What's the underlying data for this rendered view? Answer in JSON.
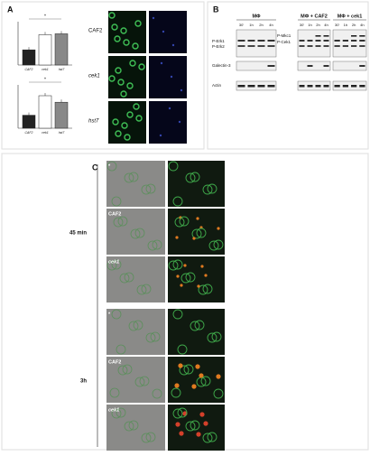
{
  "panel_a": {
    "label": "A",
    "bar_charts": [
      {
        "categories": [
          "CAF2",
          "cek1",
          "hst7"
        ],
        "values": [
          0.35,
          0.7,
          0.72
        ],
        "colors": [
          "#222222",
          "#ffffff",
          "#888888"
        ]
      },
      {
        "categories": [
          "CAF2",
          "cek1",
          "hst7"
        ],
        "values": [
          0.3,
          0.75,
          0.6
        ],
        "colors": [
          "#222222",
          "#ffffff",
          "#888888"
        ]
      }
    ],
    "significance": "*",
    "image_rows": [
      "CAF2",
      "cek1",
      "hst7"
    ]
  },
  "panel_b": {
    "label": "B",
    "groups": [
      "MΦ",
      "MΦ + CAF2",
      "MΦ + cek1"
    ],
    "times": [
      "30'",
      "1h",
      "2h",
      "4h"
    ],
    "left_labels": [
      "P-Erk1",
      "P-Erk2",
      "Galectin-3",
      "Actin"
    ],
    "mid_labels": [
      "P-Mkc1",
      "P-Cek1"
    ]
  },
  "panel_c": {
    "label": "C",
    "times": [
      "45 min",
      "3h"
    ],
    "image_rows": [
      "*",
      "CAF2",
      "cek1"
    ]
  }
}
